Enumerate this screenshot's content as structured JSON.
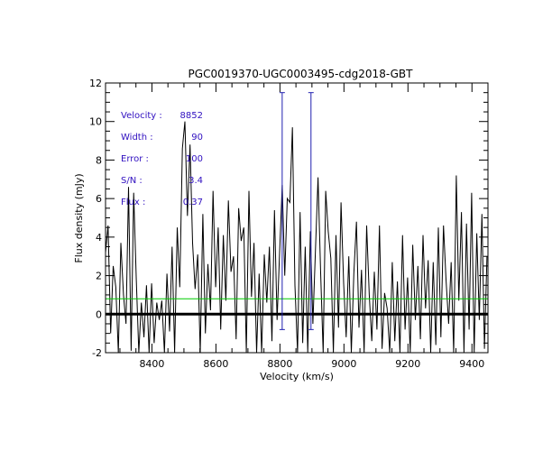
{
  "chart_data": {
    "type": "line",
    "title": "PGC0019370-UGC0003495-cdg2018-GBT",
    "xlabel": "Velocity (km/s)",
    "ylabel": "Flux density (mJy)",
    "xlim": [
      8255,
      9450
    ],
    "ylim": [
      -2,
      12
    ],
    "xticks": [
      8400,
      8600,
      8800,
      9000,
      9200,
      9400
    ],
    "yticks": [
      -2,
      0,
      2,
      4,
      6,
      8,
      10,
      12
    ],
    "xtick_labels": [
      "8400",
      "8600",
      "8800",
      "9000",
      "9200",
      "9400"
    ],
    "ytick_labels": [
      "-2",
      "0",
      "2",
      "4",
      "6",
      "8",
      "10",
      "12"
    ],
    "colors": {
      "spectrum": "#000000",
      "zero_line": "#000000",
      "rms_line": "#00cc00",
      "markers": "#2020b0",
      "annotation": "#3010c0",
      "axes": "#000000"
    },
    "annotations": [
      {
        "label": "Velocity :",
        "value": "8852"
      },
      {
        "label": "Width :",
        "value": "90"
      },
      {
        "label": "Error :",
        "value": "100"
      },
      {
        "label": "S/N :",
        "value": "3.4"
      },
      {
        "label": "Flux :",
        "value": "0.37"
      }
    ],
    "zero_level": 0,
    "rms_level": 0.8,
    "velocity_markers": [
      {
        "name": "left-edge",
        "x": 8807,
        "y_top": 11.5,
        "y_bottom": -0.8
      },
      {
        "name": "right-edge",
        "x": 8897,
        "y_top": 11.5,
        "y_bottom": -0.8
      }
    ],
    "series": [
      {
        "name": "spectrum",
        "x": [
          8255,
          8263,
          8271,
          8279,
          8287,
          8295,
          8303,
          8311,
          8319,
          8327,
          8335,
          8343,
          8351,
          8359,
          8367,
          8375,
          8383,
          8391,
          8399,
          8407,
          8415,
          8423,
          8431,
          8439,
          8447,
          8455,
          8463,
          8471,
          8479,
          8487,
          8495,
          8503,
          8511,
          8519,
          8527,
          8535,
          8543,
          8551,
          8559,
          8567,
          8575,
          8583,
          8591,
          8599,
          8607,
          8615,
          8623,
          8631,
          8639,
          8647,
          8655,
          8663,
          8671,
          8679,
          8687,
          8695,
          8703,
          8711,
          8719,
          8727,
          8735,
          8743,
          8751,
          8759,
          8767,
          8775,
          8783,
          8791,
          8799,
          8807,
          8815,
          8823,
          8831,
          8839,
          8847,
          8855,
          8863,
          8871,
          8879,
          8887,
          8895,
          8903,
          8911,
          8919,
          8927,
          8935,
          8943,
          8951,
          8959,
          8967,
          8975,
          8983,
          8991,
          8999,
          9007,
          9015,
          9023,
          9031,
          9039,
          9047,
          9055,
          9063,
          9071,
          9079,
          9087,
          9095,
          9103,
          9111,
          9119,
          9127,
          9135,
          9143,
          9151,
          9159,
          9167,
          9175,
          9183,
          9191,
          9199,
          9207,
          9215,
          9223,
          9231,
          9239,
          9247,
          9255,
          9263,
          9271,
          9279,
          9287,
          9295,
          9303,
          9311,
          9319,
          9327,
          9335,
          9343,
          9351,
          9359,
          9367,
          9375,
          9383,
          9391,
          9399,
          9407,
          9415,
          9423,
          9431,
          9439,
          9447
        ],
        "values": [
          3.2,
          4.6,
          -1.0,
          2.5,
          1.4,
          -2.0,
          3.7,
          1.0,
          -0.5,
          6.6,
          -1.9,
          6.3,
          1.8,
          -2.0,
          0.6,
          -1.2,
          1.5,
          -2.0,
          1.6,
          -1.5,
          0.6,
          -0.3,
          0.7,
          -2.0,
          2.1,
          -0.9,
          3.5,
          -2.0,
          4.5,
          1.4,
          8.6,
          10.0,
          5.1,
          8.8,
          3.7,
          1.3,
          3.1,
          -2.0,
          5.2,
          -1.0,
          2.6,
          0.2,
          6.4,
          1.4,
          4.5,
          -0.8,
          4.1,
          0.7,
          5.9,
          2.2,
          3.0,
          -1.3,
          5.5,
          3.8,
          4.5,
          -2.0,
          6.4,
          0.9,
          3.7,
          -2.0,
          2.1,
          -2.0,
          3.1,
          0.6,
          3.5,
          -1.4,
          5.4,
          -0.3,
          3.2,
          6.7,
          2.0,
          6.0,
          5.8,
          9.7,
          1.5,
          -2.0,
          5.3,
          -1.5,
          3.5,
          -2.0,
          4.3,
          -0.5,
          3.4,
          7.1,
          2.3,
          -2.0,
          6.4,
          4.3,
          2.9,
          -2.0,
          4.1,
          -0.7,
          5.8,
          1.6,
          -1.2,
          3.0,
          -2.0,
          2.1,
          4.8,
          -0.7,
          2.3,
          -2.0,
          4.6,
          1.0,
          -1.4,
          2.2,
          -0.8,
          4.6,
          -1.8,
          1.1,
          0.3,
          -2.0,
          2.7,
          -1.4,
          1.7,
          -2.0,
          4.1,
          -0.8,
          1.9,
          -2.0,
          3.6,
          -0.3,
          2.5,
          -1.3,
          4.1,
          0.3,
          2.8,
          -2.0,
          2.7,
          -1.6,
          4.5,
          -1.2,
          4.6,
          1.8,
          -0.5,
          2.7,
          -2.0,
          7.2,
          0.7,
          5.3,
          -2.0,
          4.7,
          -0.8,
          6.3,
          -2.0,
          4.2,
          -0.3,
          5.2,
          -1.8,
          3.0
        ]
      }
    ]
  }
}
